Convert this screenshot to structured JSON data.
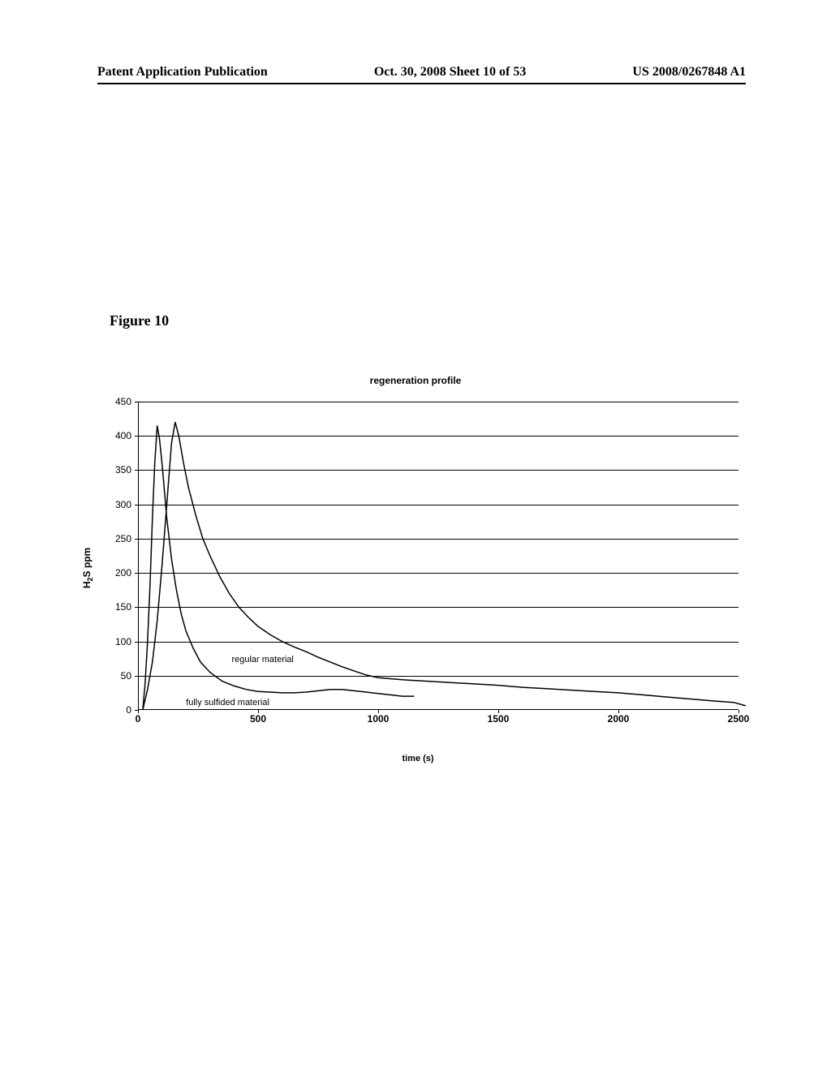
{
  "header": {
    "left": "Patent Application Publication",
    "center": "Oct. 30, 2008  Sheet 10 of 53",
    "right": "US 2008/0267848 A1"
  },
  "figure_label": "Figure 10",
  "chart": {
    "type": "line",
    "title": "regeneration profile",
    "xlabel": "time (s)",
    "ylabel_html": "H<sub>2</sub>S ppm",
    "xlim": [
      0,
      2500
    ],
    "ylim": [
      0,
      450
    ],
    "xtick_step": 500,
    "ytick_step": 50,
    "xticks": [
      0,
      500,
      1000,
      1500,
      2000,
      2500
    ],
    "yticks": [
      0,
      50,
      100,
      150,
      200,
      250,
      300,
      350,
      400,
      450
    ],
    "background_color": "#ffffff",
    "grid_color": "#000000",
    "axis_color": "#000000",
    "line_color": "#000000",
    "line_width": 1.5,
    "label_fontsize": 11,
    "tick_fontsize": 12,
    "series": [
      {
        "name": "fully sulfided material",
        "label": "fully sulfided material",
        "label_pos": {
          "x": 200,
          "y": 18
        },
        "points": [
          [
            20,
            0
          ],
          [
            30,
            40
          ],
          [
            40,
            100
          ],
          [
            50,
            180
          ],
          [
            60,
            280
          ],
          [
            70,
            360
          ],
          [
            80,
            415
          ],
          [
            90,
            395
          ],
          [
            100,
            360
          ],
          [
            110,
            320
          ],
          [
            120,
            280
          ],
          [
            140,
            220
          ],
          [
            160,
            175
          ],
          [
            180,
            140
          ],
          [
            200,
            115
          ],
          [
            230,
            90
          ],
          [
            260,
            70
          ],
          [
            300,
            55
          ],
          [
            350,
            42
          ],
          [
            400,
            35
          ],
          [
            450,
            30
          ],
          [
            500,
            27
          ],
          [
            550,
            26
          ],
          [
            600,
            25
          ],
          [
            650,
            25
          ],
          [
            700,
            26
          ],
          [
            750,
            28
          ],
          [
            800,
            30
          ],
          [
            850,
            30
          ],
          [
            900,
            28
          ],
          [
            950,
            26
          ],
          [
            1000,
            24
          ],
          [
            1050,
            22
          ],
          [
            1100,
            20
          ],
          [
            1150,
            20
          ]
        ]
      },
      {
        "name": "regular material",
        "label": "regular material",
        "label_pos": {
          "x": 390,
          "y": 80
        },
        "points": [
          [
            20,
            0
          ],
          [
            40,
            30
          ],
          [
            60,
            70
          ],
          [
            80,
            130
          ],
          [
            100,
            210
          ],
          [
            120,
            300
          ],
          [
            140,
            390
          ],
          [
            155,
            420
          ],
          [
            170,
            400
          ],
          [
            190,
            360
          ],
          [
            210,
            325
          ],
          [
            240,
            285
          ],
          [
            270,
            250
          ],
          [
            300,
            225
          ],
          [
            340,
            195
          ],
          [
            380,
            170
          ],
          [
            420,
            150
          ],
          [
            460,
            135
          ],
          [
            500,
            122
          ],
          [
            550,
            110
          ],
          [
            600,
            100
          ],
          [
            650,
            92
          ],
          [
            700,
            85
          ],
          [
            750,
            77
          ],
          [
            800,
            70
          ],
          [
            850,
            63
          ],
          [
            900,
            57
          ],
          [
            950,
            51
          ],
          [
            1000,
            47
          ],
          [
            1100,
            44
          ],
          [
            1200,
            42
          ],
          [
            1300,
            40
          ],
          [
            1400,
            38
          ],
          [
            1500,
            36
          ],
          [
            1600,
            33
          ],
          [
            1700,
            31
          ],
          [
            1800,
            29
          ],
          [
            1900,
            27
          ],
          [
            2000,
            25
          ],
          [
            2100,
            22
          ],
          [
            2200,
            19
          ],
          [
            2300,
            16
          ],
          [
            2400,
            13
          ],
          [
            2480,
            11
          ],
          [
            2530,
            6
          ]
        ]
      }
    ]
  }
}
